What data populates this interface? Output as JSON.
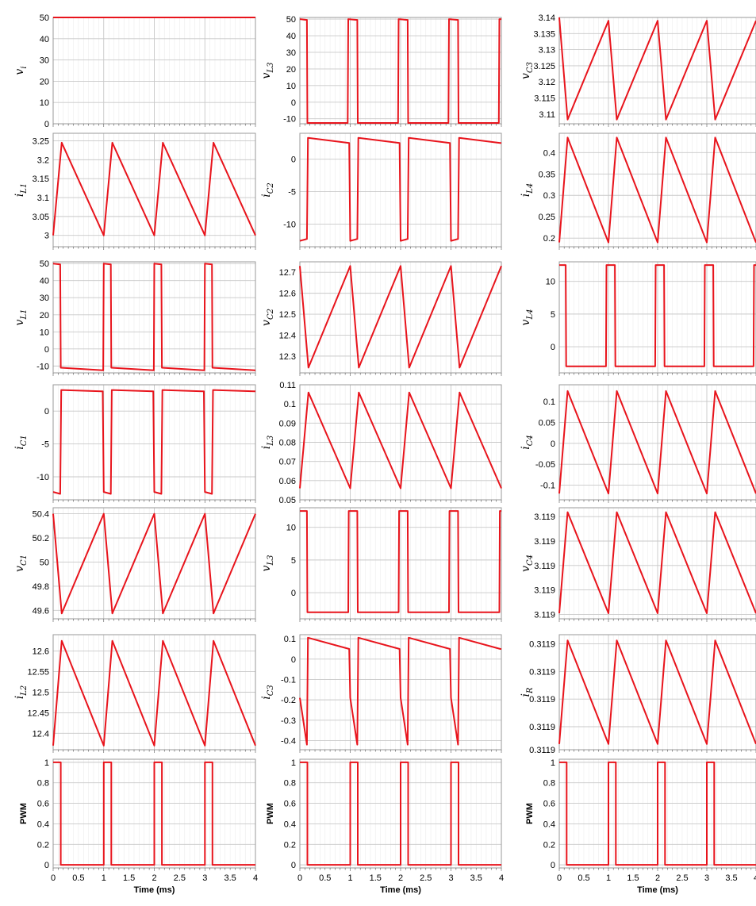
{
  "line_color": "#e8141c",
  "grid_color": "#c8c8c8",
  "chart_data": [
    {
      "id": "v_i",
      "type": "line",
      "ylabel": "v",
      "ylabel_sub": "i",
      "xlim": [
        0,
        4
      ],
      "ylim": [
        0,
        50
      ],
      "yticks": [
        "0",
        "10",
        "20",
        "30",
        "40",
        "50"
      ],
      "ytick_values": [
        0,
        10,
        20,
        30,
        40,
        50
      ],
      "xticks": [],
      "xlabel": "",
      "x": [
        0,
        4
      ],
      "y": [
        50,
        50
      ]
    },
    {
      "id": "v_L3",
      "type": "line",
      "ylabel": "v",
      "ylabel_sub": "L3",
      "xlim": [
        0,
        4
      ],
      "ylim": [
        -13,
        51
      ],
      "yticks": [
        "50",
        "40",
        "30",
        "20",
        "10",
        "0",
        "-10"
      ],
      "ytick_values": [
        50,
        40,
        30,
        20,
        10,
        0,
        -10
      ],
      "xticks": [],
      "xlabel": "",
      "x": [
        0,
        0.14,
        0.15,
        0.95,
        0.96,
        1.14,
        1.15,
        1.95,
        1.96,
        2.14,
        2.15,
        2.95,
        2.96,
        3.14,
        3.15,
        3.95,
        3.96,
        4.0
      ],
      "y": [
        50,
        49.5,
        -12.5,
        -12.5,
        50,
        49.5,
        -12.5,
        -12.5,
        50,
        49.5,
        -12.5,
        -12.5,
        50,
        49.5,
        -12.5,
        -12.5,
        50,
        50
      ]
    },
    {
      "id": "v_C3",
      "type": "line",
      "ylabel": "v",
      "ylabel_sub": "C3",
      "xlim": [
        0,
        4
      ],
      "ylim": [
        3.107,
        3.14
      ],
      "yticks": [
        "3.14",
        "3.135",
        "3.13",
        "3.125",
        "3.12",
        "3.115",
        "3.11"
      ],
      "ytick_values": [
        3.14,
        3.135,
        3.13,
        3.125,
        3.12,
        3.115,
        3.11
      ],
      "xticks": [],
      "xlabel": "",
      "x": [
        0,
        0.17,
        1.0,
        1.17,
        2.0,
        2.17,
        3.0,
        3.17,
        4.0
      ],
      "y": [
        3.14,
        3.1083,
        3.139,
        3.1083,
        3.139,
        3.1083,
        3.139,
        3.1083,
        3.139
      ]
    },
    {
      "id": "i_L1",
      "type": "line",
      "ylabel": "i",
      "ylabel_sub": "L1",
      "xlim": [
        0,
        4
      ],
      "ylim": [
        2.97,
        3.27
      ],
      "yticks": [
        "3.25",
        "3.2",
        "3.15",
        "3.1",
        "3.05",
        "3"
      ],
      "ytick_values": [
        3.25,
        3.2,
        3.15,
        3.1,
        3.05,
        3
      ],
      "xticks": [],
      "xlabel": "",
      "x": [
        0,
        0.17,
        1.0,
        1.17,
        2.0,
        2.17,
        3.0,
        3.17,
        4.0
      ],
      "y": [
        3.0,
        3.245,
        3.0,
        3.245,
        3.0,
        3.245,
        3.0,
        3.245,
        3.0
      ]
    },
    {
      "id": "i_C2",
      "type": "line",
      "ylabel": "i",
      "ylabel_sub": "C2",
      "xlim": [
        0,
        4
      ],
      "ylim": [
        -13.5,
        4
      ],
      "yticks": [
        "0",
        "-5",
        "-10"
      ],
      "ytick_values": [
        0,
        -5,
        -10
      ],
      "xticks": [],
      "xlabel": "",
      "x": [
        0,
        0.14,
        0.16,
        0.98,
        1.0,
        1.14,
        1.16,
        1.98,
        2.0,
        2.14,
        2.16,
        2.98,
        3.0,
        3.14,
        3.16,
        3.98,
        4.0
      ],
      "y": [
        -12.6,
        -12.3,
        3.3,
        2.5,
        -12.6,
        -12.3,
        3.3,
        2.5,
        -12.6,
        -12.3,
        3.3,
        2.5,
        -12.6,
        -12.3,
        3.3,
        2.5,
        2.5
      ]
    },
    {
      "id": "i_L4",
      "type": "line",
      "ylabel": "i",
      "ylabel_sub": "L4",
      "xlim": [
        0,
        4
      ],
      "ylim": [
        0.18,
        0.445
      ],
      "yticks": [
        "0.4",
        "0.35",
        "0.3",
        "0.25",
        "0.2"
      ],
      "ytick_values": [
        0.4,
        0.35,
        0.3,
        0.25,
        0.2
      ],
      "xticks": [],
      "xlabel": "",
      "x": [
        0,
        0.17,
        1.0,
        1.17,
        2.0,
        2.17,
        3.0,
        3.17,
        4.0
      ],
      "y": [
        0.19,
        0.435,
        0.19,
        0.435,
        0.19,
        0.435,
        0.19,
        0.435,
        0.19
      ]
    },
    {
      "id": "v_L1",
      "type": "line",
      "ylabel": "v",
      "ylabel_sub": "L1",
      "xlim": [
        0,
        4
      ],
      "ylim": [
        -14,
        51
      ],
      "yticks": [
        "50",
        "40",
        "30",
        "20",
        "10",
        "0",
        "-10"
      ],
      "ytick_values": [
        50,
        40,
        30,
        20,
        10,
        0,
        -10
      ],
      "xticks": [],
      "xlabel": "",
      "x": [
        0,
        0.14,
        0.15,
        0.99,
        1.0,
        1.14,
        1.15,
        1.99,
        2.0,
        2.14,
        2.15,
        2.99,
        3.0,
        3.14,
        3.15,
        3.99,
        4.0
      ],
      "y": [
        50,
        49.5,
        -11,
        -12.5,
        50,
        49.5,
        -11,
        -12.5,
        50,
        49.5,
        -11,
        -12.5,
        50,
        49.5,
        -11,
        -12.5,
        -12.5
      ]
    },
    {
      "id": "v_C2",
      "type": "line",
      "ylabel": "v",
      "ylabel_sub": "C2",
      "xlim": [
        0,
        4
      ],
      "ylim": [
        12.22,
        12.75
      ],
      "yticks": [
        "12.7",
        "12.6",
        "12.5",
        "12.4",
        "12.3"
      ],
      "ytick_values": [
        12.7,
        12.6,
        12.5,
        12.4,
        12.3
      ],
      "xticks": [],
      "xlabel": "",
      "x": [
        0,
        0.17,
        1.0,
        1.17,
        2.0,
        2.17,
        3.0,
        3.17,
        4.0
      ],
      "y": [
        12.73,
        12.245,
        12.73,
        12.245,
        12.73,
        12.245,
        12.73,
        12.245,
        12.73
      ]
    },
    {
      "id": "v_L4",
      "type": "line",
      "ylabel": "v",
      "ylabel_sub": "L4",
      "xlim": [
        0,
        4
      ],
      "ylim": [
        -4,
        13
      ],
      "yticks": [
        "10",
        "5",
        "0"
      ],
      "ytick_values": [
        10,
        5,
        0
      ],
      "xticks": [],
      "xlabel": "",
      "x": [
        0,
        0.13,
        0.14,
        0.95,
        0.96,
        1.13,
        1.14,
        1.95,
        1.96,
        2.13,
        2.14,
        2.95,
        2.96,
        3.13,
        3.14,
        3.95,
        3.96,
        4.0
      ],
      "y": [
        12.5,
        12.5,
        -3,
        -3,
        12.5,
        12.5,
        -3,
        -3,
        12.5,
        12.5,
        -3,
        -3,
        12.5,
        12.5,
        -3,
        -3,
        12.5,
        12.5
      ]
    },
    {
      "id": "i_C1",
      "type": "line",
      "ylabel": "i",
      "ylabel_sub": "C1",
      "xlim": [
        0,
        4
      ],
      "ylim": [
        -13.5,
        4
      ],
      "yticks": [
        "0",
        "-5",
        "-10"
      ],
      "ytick_values": [
        0,
        -5,
        -10
      ],
      "xticks": [],
      "xlabel": "",
      "x": [
        0,
        0.14,
        0.16,
        0.98,
        1.0,
        1.14,
        1.16,
        1.98,
        2.0,
        2.14,
        2.16,
        2.98,
        3.0,
        3.14,
        3.16,
        3.98,
        4.0
      ],
      "y": [
        -12.3,
        -12.6,
        3.2,
        3.0,
        -12.3,
        -12.6,
        3.2,
        3.0,
        -12.3,
        -12.6,
        3.2,
        3.0,
        -12.3,
        -12.6,
        3.2,
        3.0,
        3.0
      ]
    },
    {
      "id": "i_L3",
      "type": "line",
      "ylabel": "i",
      "ylabel_sub": "L3",
      "xlim": [
        0,
        4
      ],
      "ylim": [
        0.05,
        0.11
      ],
      "yticks": [
        "0.11",
        "0.1",
        "0.09",
        "0.08",
        "0.07",
        "0.06",
        "0.05"
      ],
      "ytick_values": [
        0.11,
        0.1,
        0.09,
        0.08,
        0.07,
        0.06,
        0.05
      ],
      "xticks": [],
      "xlabel": "",
      "x": [
        0,
        0.17,
        1.0,
        1.17,
        2.0,
        2.17,
        3.0,
        3.17,
        4.0
      ],
      "y": [
        0.056,
        0.106,
        0.056,
        0.106,
        0.056,
        0.106,
        0.056,
        0.106,
        0.056
      ]
    },
    {
      "id": "i_C4",
      "type": "line",
      "ylabel": "i",
      "ylabel_sub": "C4",
      "xlim": [
        0,
        4
      ],
      "ylim": [
        -0.135,
        0.14
      ],
      "yticks": [
        "0.1",
        "0.05",
        "0",
        "-0.05",
        "-0.1"
      ],
      "ytick_values": [
        0.1,
        0.05,
        0,
        -0.05,
        -0.1
      ],
      "xticks": [],
      "xlabel": "",
      "x": [
        0,
        0.17,
        1.0,
        1.17,
        2.0,
        2.17,
        3.0,
        3.17,
        4.0
      ],
      "y": [
        -0.12,
        0.125,
        -0.12,
        0.125,
        -0.12,
        0.125,
        -0.12,
        0.125,
        -0.12
      ]
    },
    {
      "id": "v_C1",
      "type": "line",
      "ylabel": "v",
      "ylabel_sub": "C1",
      "xlim": [
        0,
        4
      ],
      "ylim": [
        49.53,
        50.45
      ],
      "yticks": [
        "50.4",
        "50.2",
        "50",
        "49.8",
        "49.6"
      ],
      "ytick_values": [
        50.4,
        50.2,
        50,
        49.8,
        49.6
      ],
      "xticks": [],
      "xlabel": "",
      "x": [
        0,
        0.17,
        1.0,
        1.17,
        2.0,
        2.17,
        3.0,
        3.17,
        4.0
      ],
      "y": [
        50.4,
        49.575,
        50.4,
        49.575,
        50.4,
        49.575,
        50.4,
        49.575,
        50.4
      ]
    },
    {
      "id": "v_L3b",
      "type": "line",
      "ylabel": "v",
      "ylabel_sub": "L3",
      "xlim": [
        0,
        4
      ],
      "ylim": [
        -4,
        13
      ],
      "yticks": [
        "10",
        "5",
        "0"
      ],
      "ytick_values": [
        10,
        5,
        0
      ],
      "xticks": [],
      "xlabel": "",
      "x": [
        0,
        0.14,
        0.15,
        0.96,
        0.97,
        1.14,
        1.15,
        1.96,
        1.97,
        2.14,
        2.15,
        2.96,
        2.97,
        3.14,
        3.15,
        3.96,
        3.97,
        4.0
      ],
      "y": [
        12.5,
        12.5,
        -3,
        -3,
        12.5,
        12.5,
        -3,
        -3,
        12.5,
        12.5,
        -3,
        -3,
        12.5,
        12.5,
        -3,
        -3,
        12.5,
        12.5
      ]
    },
    {
      "id": "v_C4",
      "type": "line",
      "ylabel": "v",
      "ylabel_sub": "C4",
      "xlim": [
        0,
        4
      ],
      "ylim": [
        0,
        1
      ],
      "yticks": [
        "3.119",
        "3.119",
        "3.119",
        "3.119",
        "3.119"
      ],
      "ytick_values": [
        0.92,
        0.7,
        0.48,
        0.26,
        0.04
      ],
      "xticks": [],
      "xlabel": "",
      "x": [
        0,
        0.17,
        1.0,
        1.17,
        2.0,
        2.17,
        3.0,
        3.17,
        4.0
      ],
      "y": [
        0.05,
        0.96,
        0.05,
        0.96,
        0.05,
        0.96,
        0.05,
        0.96,
        0.05
      ]
    },
    {
      "id": "i_L2",
      "type": "line",
      "ylabel": "i",
      "ylabel_sub": "L2",
      "xlim": [
        0,
        4
      ],
      "ylim": [
        12.36,
        12.64
      ],
      "yticks": [
        "12.6",
        "12.55",
        "12.5",
        "12.45",
        "12.4"
      ],
      "ytick_values": [
        12.6,
        12.55,
        12.5,
        12.45,
        12.4
      ],
      "xticks": [],
      "xlabel": "",
      "x": [
        0,
        0.17,
        1.0,
        1.17,
        2.0,
        2.17,
        3.0,
        3.17,
        4.0
      ],
      "y": [
        12.37,
        12.625,
        12.37,
        12.625,
        12.37,
        12.625,
        12.37,
        12.625,
        12.37
      ]
    },
    {
      "id": "i_C3",
      "type": "line",
      "ylabel": "i",
      "ylabel_sub": "C3",
      "xlim": [
        0,
        4
      ],
      "ylim": [
        -0.445,
        0.12
      ],
      "yticks": [
        "0.1",
        "0",
        "-0.1",
        "-0.2",
        "-0.3",
        "-0.4"
      ],
      "ytick_values": [
        0.1,
        0,
        -0.1,
        -0.2,
        -0.3,
        -0.4
      ],
      "xticks": [],
      "xlabel": "",
      "x": [
        0,
        0.14,
        0.16,
        0.98,
        1.0,
        1.14,
        1.16,
        1.98,
        2.0,
        2.14,
        2.16,
        2.98,
        3.0,
        3.14,
        3.16,
        3.98,
        4.0
      ],
      "y": [
        -0.19,
        -0.42,
        0.105,
        0.05,
        -0.19,
        -0.42,
        0.105,
        0.05,
        -0.19,
        -0.42,
        0.105,
        0.05,
        -0.19,
        -0.42,
        0.105,
        0.05,
        0.05
      ]
    },
    {
      "id": "i_R",
      "type": "line",
      "ylabel": "i",
      "ylabel_sub": "R",
      "xlim": [
        0,
        4
      ],
      "ylim": [
        0,
        1
      ],
      "yticks": [
        "0.3119",
        "0.3119",
        "0.3119",
        "0.3119",
        "0.3119"
      ],
      "ytick_values": [
        0.92,
        0.68,
        0.44,
        0.2,
        0.0
      ],
      "xticks": [],
      "xlabel": "",
      "x": [
        0,
        0.17,
        1.0,
        1.17,
        2.0,
        2.17,
        3.0,
        3.17,
        4.0
      ],
      "y": [
        0.05,
        0.95,
        0.05,
        0.95,
        0.05,
        0.95,
        0.05,
        0.95,
        0.05
      ]
    },
    {
      "id": "pwm_1",
      "type": "line",
      "ylabel": "PWM",
      "ylabel_sub": "",
      "xlim": [
        0,
        4
      ],
      "ylim": [
        -0.03,
        1.03
      ],
      "yticks": [
        "1",
        "0.8",
        "0.6",
        "0.4",
        "0.2",
        "0"
      ],
      "ytick_values": [
        1,
        0.8,
        0.6,
        0.4,
        0.2,
        0
      ],
      "xticks": [
        "0",
        "0.5",
        "1",
        "1.5",
        "2",
        "2.5",
        "3",
        "3.5",
        "4"
      ],
      "xtick_values": [
        0,
        0.5,
        1,
        1.5,
        2,
        2.5,
        3,
        3.5,
        4
      ],
      "xlabel": "Time (ms)",
      "x": [
        0,
        0.15,
        0.15,
        1.0,
        1.0,
        1.15,
        1.15,
        2.0,
        2.0,
        2.15,
        2.15,
        3.0,
        3.0,
        3.15,
        3.15,
        4.0
      ],
      "y": [
        1,
        1,
        0,
        0,
        1,
        1,
        0,
        0,
        1,
        1,
        0,
        0,
        1,
        1,
        0,
        0
      ]
    },
    {
      "id": "pwm_2",
      "type": "line",
      "ylabel": "PWM",
      "ylabel_sub": "",
      "xlim": [
        0,
        4
      ],
      "ylim": [
        -0.03,
        1.03
      ],
      "yticks": [
        "1",
        "0.8",
        "0.6",
        "0.4",
        "0.2",
        "0"
      ],
      "ytick_values": [
        1,
        0.8,
        0.6,
        0.4,
        0.2,
        0
      ],
      "xticks": [
        "0",
        "0.5",
        "1",
        "1.5",
        "2",
        "2.5",
        "3",
        "3.5",
        "4"
      ],
      "xtick_values": [
        0,
        0.5,
        1,
        1.5,
        2,
        2.5,
        3,
        3.5,
        4
      ],
      "xlabel": "Time (ms)",
      "x": [
        0,
        0.15,
        0.15,
        1.0,
        1.0,
        1.15,
        1.15,
        2.0,
        2.0,
        2.15,
        2.15,
        3.0,
        3.0,
        3.15,
        3.15,
        4.0
      ],
      "y": [
        1,
        1,
        0,
        0,
        1,
        1,
        0,
        0,
        1,
        1,
        0,
        0,
        1,
        1,
        0,
        0
      ]
    },
    {
      "id": "pwm_3",
      "type": "line",
      "ylabel": "PWM",
      "ylabel_sub": "",
      "xlim": [
        0,
        4
      ],
      "ylim": [
        -0.03,
        1.03
      ],
      "yticks": [
        "1",
        "0.8",
        "0.6",
        "0.4",
        "0.2",
        "0"
      ],
      "ytick_values": [
        1,
        0.8,
        0.6,
        0.4,
        0.2,
        0
      ],
      "xticks": [
        "0",
        "0.5",
        "1",
        "1.5",
        "2",
        "2.5",
        "3",
        "3.5",
        "4"
      ],
      "xtick_values": [
        0,
        0.5,
        1,
        1.5,
        2,
        2.5,
        3,
        3.5,
        4
      ],
      "xlabel": "Time (ms)",
      "x": [
        0,
        0.15,
        0.15,
        1.0,
        1.0,
        1.15,
        1.15,
        2.0,
        2.0,
        2.15,
        2.15,
        3.0,
        3.0,
        3.15,
        3.15,
        4.0
      ],
      "y": [
        1,
        1,
        0,
        0,
        1,
        1,
        0,
        0,
        1,
        1,
        0,
        0,
        1,
        1,
        0,
        0
      ]
    }
  ]
}
